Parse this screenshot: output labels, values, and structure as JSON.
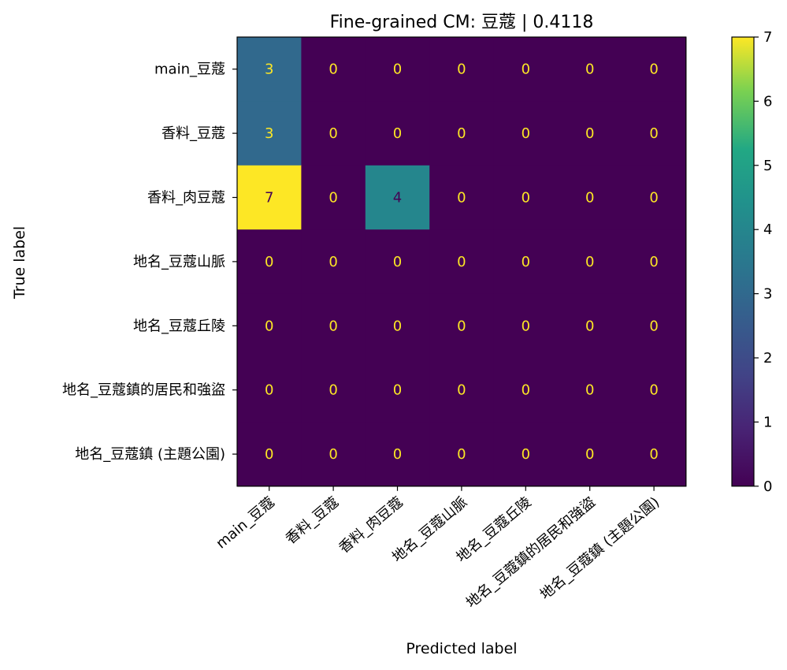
{
  "chart_data": {
    "type": "heatmap",
    "title": "Fine-grained CM: 豆蔻 | 0.4118",
    "xlabel": "Predicted label",
    "ylabel": "True label",
    "row_labels": [
      "main_豆蔻",
      "香料_豆蔻",
      "香料_肉豆蔻",
      "地名_豆蔻山脈",
      "地名_豆蔻丘陵",
      "地名_豆蔻鎮的居民和強盜",
      "地名_豆蔻鎮 (主題公園)"
    ],
    "col_labels": [
      "main_豆蔻",
      "香料_豆蔻",
      "香料_肉豆蔻",
      "地名_豆蔻山脈",
      "地名_豆蔻丘陵",
      "地名_豆蔻鎮的居民和強盜",
      "地名_豆蔻鎮 (主題公園)"
    ],
    "matrix": [
      [
        3,
        0,
        0,
        0,
        0,
        0,
        0
      ],
      [
        3,
        0,
        0,
        0,
        0,
        0,
        0
      ],
      [
        7,
        0,
        4,
        0,
        0,
        0,
        0
      ],
      [
        0,
        0,
        0,
        0,
        0,
        0,
        0
      ],
      [
        0,
        0,
        0,
        0,
        0,
        0,
        0
      ],
      [
        0,
        0,
        0,
        0,
        0,
        0,
        0
      ],
      [
        0,
        0,
        0,
        0,
        0,
        0,
        0
      ]
    ],
    "colorbar": {
      "min": 0,
      "max": 7,
      "ticks": [
        0,
        1,
        2,
        3,
        4,
        5,
        6,
        7
      ],
      "colormap": "viridis"
    },
    "colors": {
      "low_text": "#fde725",
      "high_text": "#440154"
    }
  }
}
